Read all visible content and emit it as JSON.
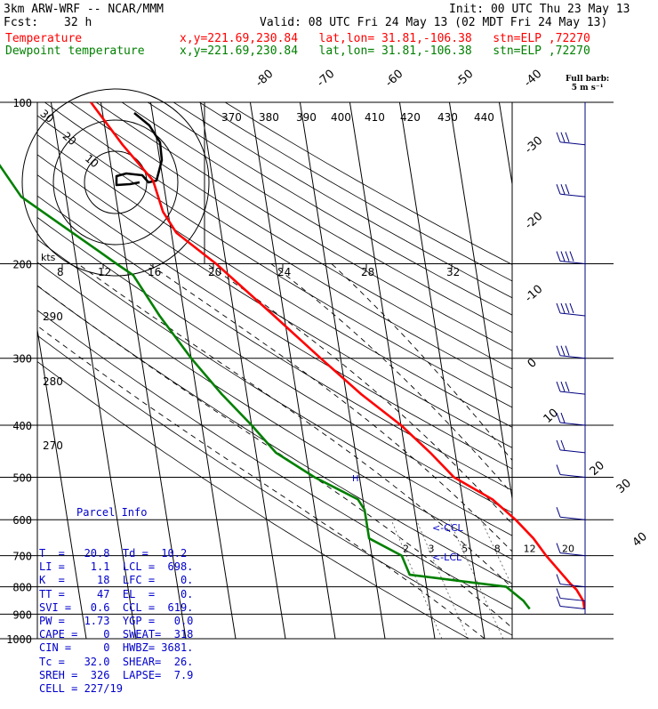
{
  "header": {
    "model": "3km ARW-WRF -- NCAR/MMM",
    "fcst_label": "Fcst:",
    "fcst_value": "32 h",
    "init": "Init: 00 UTC Thu 23 May 13",
    "valid": "Valid: 08 UTC Fri 24 May 13 (02 MDT Fri 24 May 13)",
    "temp_label": "Temperature",
    "dew_label": "Dewpoint temperature",
    "location": "x,y=221.69,230.84   lat,lon= 31.81,-106.38   stn=ELP ,72270"
  },
  "barb_legend": {
    "line1": "Full barb:",
    "line2": "5 m s⁻¹"
  },
  "colors": {
    "temperature": "#ff0000",
    "dewpoint": "#008000",
    "barbs": "#000080",
    "grid": "#000000",
    "mixing": "#555555"
  },
  "chart_data": {
    "type": "line",
    "y_axis": "pressure (hPa), log scale",
    "ylim": [
      1000,
      100
    ],
    "pressure_ticks": [
      "100",
      "200",
      "300",
      "400",
      "500",
      "600",
      "700",
      "800",
      "900",
      "1000"
    ],
    "isotherm_labels": [
      "-80",
      "-70",
      "-60",
      "-50",
      "-40",
      "-30",
      "-20",
      "-10",
      "0",
      "10",
      "20",
      "30",
      "40"
    ],
    "theta_labels": [
      "370",
      "380",
      "390",
      "400",
      "410",
      "420",
      "430",
      "440",
      "290",
      "280",
      "270"
    ],
    "mixing_labels": [
      "2",
      "3",
      "5",
      "8",
      "12",
      "20"
    ],
    "series": [
      {
        "name": "Temperature",
        "color": "#ff0000",
        "p": [
          880,
          850,
          810,
          790,
          700,
          650,
          600,
          550,
          500,
          450,
          400,
          350,
          300,
          250,
          200,
          175,
          160,
          140,
          120,
          100
        ],
        "t": [
          21,
          21,
          20,
          19,
          15,
          13,
          10,
          6,
          -1,
          -5,
          -10,
          -17,
          -24,
          -32,
          -42,
          -49,
          -51,
          -52,
          -57,
          -62
        ]
      },
      {
        "name": "Dewpoint temperature",
        "color": "#008000",
        "p": [
          880,
          850,
          800,
          760,
          700,
          650,
          575,
          550,
          500,
          450,
          400,
          350,
          300,
          250,
          210,
          200,
          190,
          150,
          100
        ],
        "t": [
          10,
          9,
          6,
          -13,
          -14,
          -20,
          -20,
          -21,
          -29,
          -36,
          -40,
          -45,
          -50,
          -55,
          -59,
          -62,
          -65,
          -79,
          -89
        ]
      }
    ],
    "hodograph": {
      "rings": [
        "10",
        "20",
        "30"
      ],
      "axis_label": "kts",
      "speed_ticks": [
        "8",
        "12",
        "16",
        "20",
        "24",
        "28",
        "32"
      ]
    },
    "markers": [
      "<-CCL",
      "<-LCL"
    ],
    "wind_barbs_kts": [
      {
        "p": 120,
        "spd": 25,
        "dir": 290
      },
      {
        "p": 150,
        "spd": 30,
        "dir": 280
      },
      {
        "p": 200,
        "spd": 40,
        "dir": 270
      },
      {
        "p": 250,
        "spd": 35,
        "dir": 270
      },
      {
        "p": 300,
        "spd": 30,
        "dir": 260
      },
      {
        "p": 350,
        "spd": 25,
        "dir": 260
      },
      {
        "p": 400,
        "spd": 20,
        "dir": 250
      },
      {
        "p": 450,
        "spd": 15,
        "dir": 250
      },
      {
        "p": 500,
        "spd": 10,
        "dir": 240
      },
      {
        "p": 600,
        "spd": 8,
        "dir": 230
      },
      {
        "p": 700,
        "spd": 5,
        "dir": 200
      },
      {
        "p": 800,
        "spd": 5,
        "dir": 160
      },
      {
        "p": 850,
        "spd": 5,
        "dir": 140
      },
      {
        "p": 880,
        "spd": 5,
        "dir": 130
      }
    ]
  },
  "parcel_info": {
    "title": "Parcel Info",
    "rows": [
      "T  =   20.8  Td =  10.2",
      "LI =    1.1  LCL =  698.",
      "K  =     18  LFC =    0.",
      "TT =     47  EL  =    0.",
      "SVI =   0.6  CCL =  619.",
      "PW =   1.73  YGP =   0.0",
      "CAPE =    0  SWEAT=  318",
      "CIN =     0  HWBZ= 3681.",
      "Tc =   32.0  SHEAR=  26.",
      "SREH =  326  LAPSE=  7.9",
      "CELL = 227/19"
    ]
  }
}
